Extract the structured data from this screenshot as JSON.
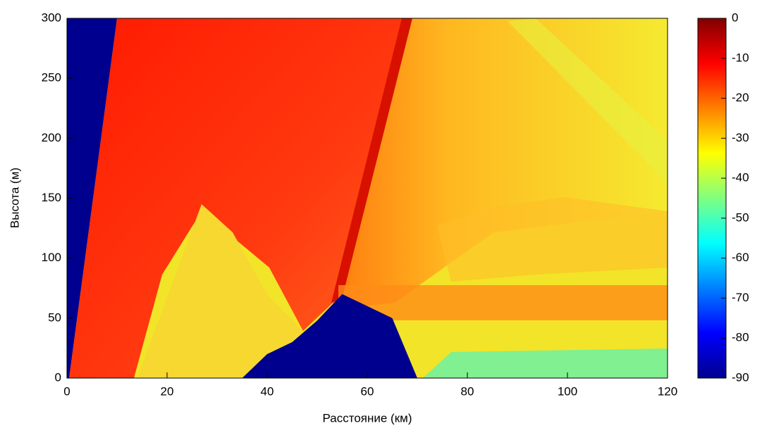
{
  "chart_data": {
    "type": "heatmap",
    "xlabel": "Расстояние (км)",
    "ylabel": "Высота (м)",
    "xlim": [
      0,
      120
    ],
    "xticks": [
      0,
      20,
      40,
      60,
      80,
      100,
      120
    ],
    "ylim": [
      0,
      300
    ],
    "yticks": [
      0,
      50,
      100,
      150,
      200,
      250,
      300
    ],
    "colormap": "jet",
    "clim": [
      -90,
      0
    ],
    "cticks": [
      0,
      -10,
      -20,
      -30,
      -40,
      -50,
      -60,
      -70,
      -80,
      -90
    ],
    "terrain": {
      "color": "#00008f",
      "x": [
        35,
        40,
        45,
        50,
        55,
        60,
        65,
        70
      ],
      "y": [
        0,
        20,
        30,
        48,
        70,
        60,
        50,
        0
      ]
    }
  }
}
